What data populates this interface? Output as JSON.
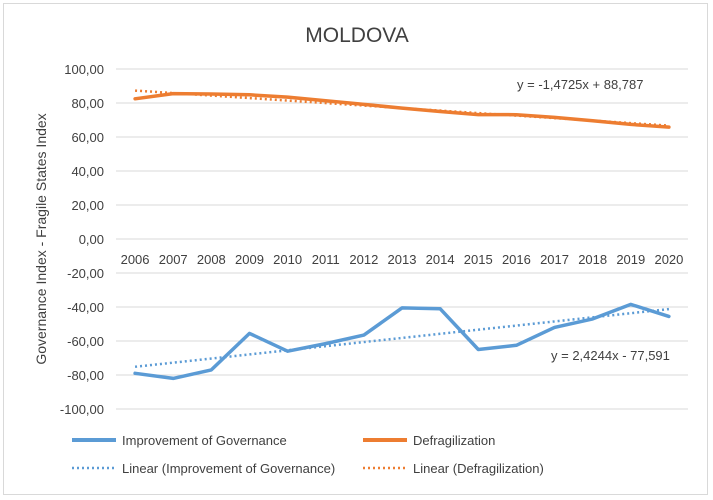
{
  "chart_data": {
    "type": "line",
    "title": "MOLDOVA",
    "ylabel": "Governance Index -  Fragile States Index",
    "xlabel": "",
    "ylim": [
      -100,
      100
    ],
    "yticks": [
      "100,00",
      "80,00",
      "60,00",
      "40,00",
      "20,00",
      "0,00",
      "-20,00",
      "-40,00",
      "-60,00",
      "-80,00",
      "-100,00"
    ],
    "ytick_values": [
      100,
      80,
      60,
      40,
      20,
      0,
      -20,
      -40,
      -60,
      -80,
      -100
    ],
    "categories": [
      "2006",
      "2007",
      "2008",
      "2009",
      "2010",
      "2011",
      "2012",
      "2013",
      "2014",
      "2015",
      "2016",
      "2017",
      "2018",
      "2019",
      "2020"
    ],
    "grid": true,
    "legend_position": "bottom",
    "series": [
      {
        "name": "Improvement of Governance",
        "color": "#5b9bd5",
        "values": [
          -79,
          -82,
          -77,
          -55.5,
          -66,
          -61.5,
          -56.5,
          -40.5,
          -41,
          -65,
          -62.5,
          -52,
          -47,
          -38.5,
          -45.5
        ]
      },
      {
        "name": "Defragilization",
        "color": "#ed7d31",
        "values": [
          82.5,
          85.5,
          85.3,
          84.8,
          83.5,
          81.3,
          79.2,
          77,
          75,
          73.2,
          73.1,
          71.5,
          69.5,
          67.4,
          65.8
        ]
      }
    ],
    "trendlines": [
      {
        "name": "Linear (Improvement of Governance)",
        "color": "#5b9bd5",
        "slope": 2.4244,
        "intercept": -77.591,
        "equation": "y = 2,4244x - 77,591"
      },
      {
        "name": "Linear (Defragilization)",
        "color": "#ed7d31",
        "slope": -1.4725,
        "intercept": 88.787,
        "equation": "y = -1,4725x + 88,787"
      }
    ]
  }
}
